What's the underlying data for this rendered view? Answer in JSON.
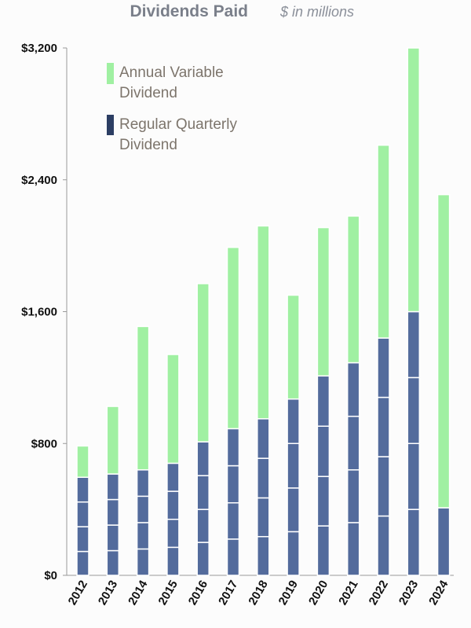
{
  "chart_data": {
    "type": "bar",
    "stacked": true,
    "title": "Dividends Paid",
    "subtitle": "$ in millions",
    "categories": [
      "2012",
      "2013",
      "2014",
      "2015",
      "2016",
      "2017",
      "2018",
      "2019",
      "2020",
      "2021",
      "2022",
      "2023",
      "2024"
    ],
    "ylim": [
      0,
      3200
    ],
    "yticks": [
      {
        "value": 0,
        "label": "$0"
      },
      {
        "value": 800,
        "label": "$800"
      },
      {
        "value": 1600,
        "label": "$1,600"
      },
      {
        "value": 2400,
        "label": "$2,400"
      },
      {
        "value": 3200,
        "label": "$3,200"
      }
    ],
    "quarterly_segments": [
      [
        145,
        150,
        150,
        150
      ],
      [
        150,
        155,
        155,
        155
      ],
      [
        160,
        160,
        160,
        160
      ],
      [
        170,
        170,
        170,
        170
      ],
      [
        200,
        200,
        205,
        205
      ],
      [
        220,
        220,
        225,
        225
      ],
      [
        235,
        235,
        240,
        240
      ],
      [
        265,
        265,
        270,
        270
      ],
      [
        300,
        300,
        305,
        305
      ],
      [
        320,
        320,
        325,
        325
      ],
      [
        360,
        360,
        360,
        360
      ],
      [
        400,
        400,
        400,
        400
      ],
      [
        410
      ]
    ],
    "series": [
      {
        "name": "Regular Quarterly Dividend",
        "color": "#536b9c",
        "values": [
          595,
          615,
          640,
          680,
          810,
          890,
          950,
          1070,
          1210,
          1290,
          1440,
          1600,
          410
        ]
      },
      {
        "name": "Annual Variable Dividend",
        "color": "#a0f0a2",
        "values": [
          190,
          410,
          870,
          660,
          960,
          1100,
          1170,
          630,
          900,
          890,
          1170,
          1600,
          1900
        ]
      }
    ],
    "legend": [
      {
        "label_line1": "Annual Variable",
        "label_line2": "Dividend",
        "color": "#a0f0a2"
      },
      {
        "label_line1": "Regular Quarterly",
        "label_line2": "Dividend",
        "color": "#2c3e63"
      }
    ],
    "legend_position": "top-left"
  }
}
